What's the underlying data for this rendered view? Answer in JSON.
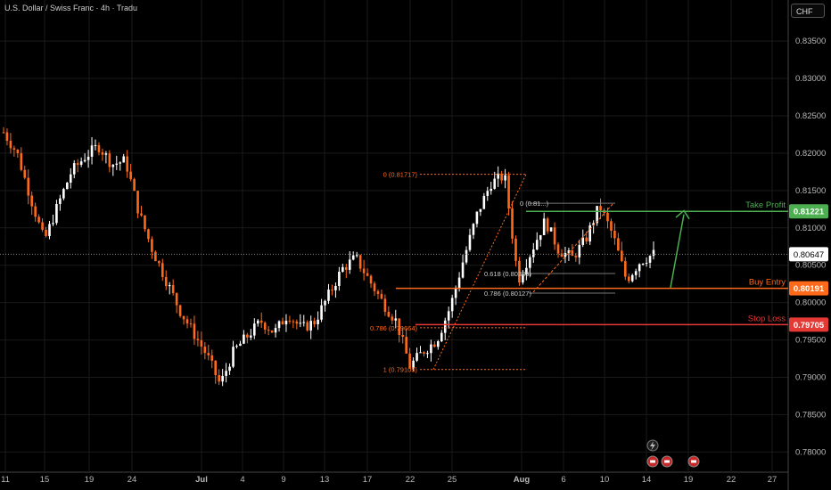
{
  "header": {
    "title": "U.S. Dollar / Swiss Franc · 4h · Tradu",
    "currency_button": "CHF"
  },
  "colors": {
    "candle_up": "#ffffff",
    "candle_down": "#ff6a1a",
    "take_profit": "#4caf50",
    "buy_entry": "#ff6a1a",
    "stop_loss": "#e53935",
    "fib": "#ff6a1a",
    "grid": "#1a1a1a"
  },
  "events": {
    "icons": [
      "lightning-icon",
      "flag-icon",
      "flag-icon",
      "flag-icon"
    ]
  },
  "chart_data": {
    "type": "candlestick",
    "title": "U.S. Dollar / Swiss Franc · 4h · Tradu",
    "ylim": [
      0.7773,
      0.8405
    ],
    "y_ticks": [
      0.78,
      0.785,
      0.79,
      0.795,
      0.8,
      0.805,
      0.81,
      0.815,
      0.82,
      0.825,
      0.83,
      0.835
    ],
    "y_tick_labels": [
      "0.78000",
      "0.78500",
      "0.79000",
      "0.79500",
      "0.80000",
      "0.80500",
      "0.81000",
      "0.81500",
      "0.82000",
      "0.82500",
      "0.83000",
      "0.83500"
    ],
    "x_labels": [
      "11",
      "15",
      "19",
      "24",
      "Jul",
      "4",
      "9",
      "13",
      "17",
      "22",
      "25",
      "Aug",
      "6",
      "10",
      "14",
      "19",
      "22",
      "27"
    ],
    "current_price": {
      "value": 0.80647,
      "label": "0.80647"
    },
    "levels": [
      {
        "name": "Take Profit",
        "value": 0.81221,
        "label": "0.81221"
      },
      {
        "name": "Buy Entry",
        "value": 0.80191,
        "label": "0.80191"
      },
      {
        "name": "Stop Loss",
        "value": 0.79705,
        "label": "0.79705"
      }
    ],
    "fib_1": [
      {
        "label": "0 (0.81717)",
        "value": 0.81717
      },
      {
        "label": "0.786 (0.79664)",
        "value": 0.79664
      },
      {
        "label": "1 (0.79105)",
        "value": 0.79105
      }
    ],
    "fib_2": [
      {
        "label": "0 (0.81...)",
        "value": 0.8133
      },
      {
        "label": "0.618 (0.80389)",
        "value": 0.80389
      },
      {
        "label": "0.786 (0.80127)",
        "value": 0.80127
      }
    ],
    "trend_path": [
      0.8228,
      0.82,
      0.814,
      0.8082,
      0.813,
      0.8175,
      0.8195,
      0.821,
      0.8185,
      0.819,
      0.812,
      0.807,
      0.803,
      0.799,
      0.796,
      0.793,
      0.789,
      0.7935,
      0.7955,
      0.7975,
      0.796,
      0.7985,
      0.7965,
      0.7975,
      0.801,
      0.8045,
      0.806,
      0.803,
      0.8,
      0.7975,
      0.7915,
      0.7935,
      0.795,
      0.7995,
      0.806,
      0.812,
      0.816,
      0.817,
      0.803,
      0.807,
      0.811,
      0.807,
      0.806,
      0.8085,
      0.813,
      0.809,
      0.803,
      0.8055,
      0.8065
    ]
  }
}
